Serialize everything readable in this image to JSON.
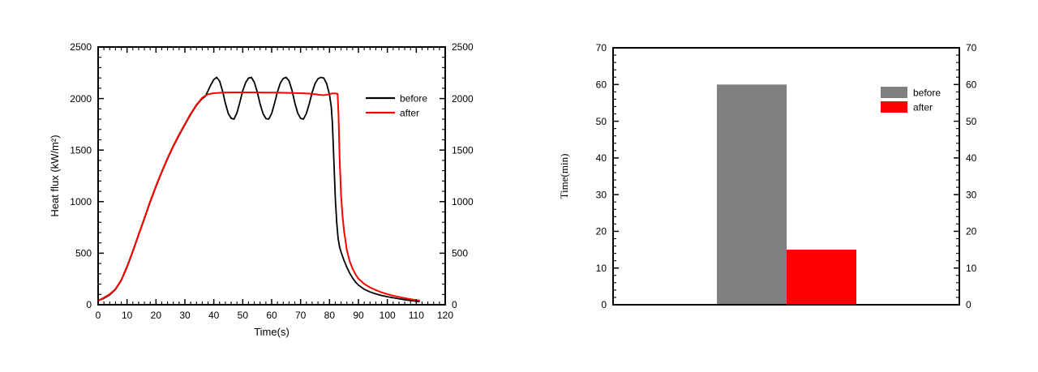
{
  "figure": {
    "background": "#ffffff",
    "axis_color": "#000000"
  },
  "chart_data": [
    {
      "id": "heat_flux",
      "type": "line",
      "title": "",
      "xlabel": "Time(s)",
      "ylabel": "Heat flux (kW/m²)",
      "xlim": [
        0,
        120
      ],
      "ylim": [
        0,
        2500
      ],
      "xticks": [
        0,
        10,
        20,
        30,
        40,
        50,
        60,
        70,
        80,
        90,
        100,
        110,
        120
      ],
      "yticks": [
        0,
        500,
        1000,
        1500,
        2000,
        2500
      ],
      "x_minor_step": 2,
      "y_minor_step": 100,
      "grid": false,
      "mirror_right_axis": true,
      "legend": {
        "position": "right-center",
        "entries": [
          {
            "label": "before",
            "color": "#000000",
            "swatch": "line"
          },
          {
            "label": "after",
            "color": "#ff0000",
            "swatch": "line"
          }
        ]
      },
      "series": [
        {
          "name": "before",
          "color": "#000000",
          "points": [
            [
              0,
              40
            ],
            [
              2,
              62
            ],
            [
              4,
              95
            ],
            [
              6,
              148
            ],
            [
              8,
              235
            ],
            [
              10,
              365
            ],
            [
              12,
              515
            ],
            [
              14,
              675
            ],
            [
              16,
              835
            ],
            [
              18,
              995
            ],
            [
              20,
              1145
            ],
            [
              22,
              1285
            ],
            [
              24,
              1415
            ],
            [
              26,
              1535
            ],
            [
              28,
              1645
            ],
            [
              30,
              1745
            ],
            [
              32,
              1845
            ],
            [
              34,
              1935
            ],
            [
              36,
              2000
            ],
            [
              37,
              2020
            ],
            [
              38,
              2075
            ],
            [
              39,
              2135
            ],
            [
              40,
              2185
            ],
            [
              41,
              2205
            ],
            [
              42,
              2170
            ],
            [
              43,
              2075
            ],
            [
              44,
              1955
            ],
            [
              45,
              1855
            ],
            [
              46,
              1808
            ],
            [
              47,
              1800
            ],
            [
              48,
              1862
            ],
            [
              49,
              1965
            ],
            [
              50,
              2075
            ],
            [
              51,
              2155
            ],
            [
              52,
              2198
            ],
            [
              53,
              2205
            ],
            [
              54,
              2158
            ],
            [
              55,
              2065
            ],
            [
              56,
              1948
            ],
            [
              57,
              1855
            ],
            [
              58,
              1806
            ],
            [
              59,
              1800
            ],
            [
              60,
              1855
            ],
            [
              61,
              1955
            ],
            [
              62,
              2065
            ],
            [
              63,
              2150
            ],
            [
              64,
              2195
            ],
            [
              65,
              2205
            ],
            [
              66,
              2172
            ],
            [
              67,
              2082
            ],
            [
              68,
              1960
            ],
            [
              69,
              1860
            ],
            [
              70,
              1808
            ],
            [
              71,
              1800
            ],
            [
              72,
              1855
            ],
            [
              73,
              1950
            ],
            [
              74,
              2060
            ],
            [
              75,
              2145
            ],
            [
              76,
              2192
            ],
            [
              77,
              2205
            ],
            [
              78,
              2200
            ],
            [
              79,
              2145
            ],
            [
              80,
              2040
            ],
            [
              80.6,
              1920
            ],
            [
              81,
              1760
            ],
            [
              81.5,
              1400
            ],
            [
              82,
              1030
            ],
            [
              82.5,
              790
            ],
            [
              83,
              640
            ],
            [
              83.5,
              560
            ],
            [
              84,
              510
            ],
            [
              85,
              430
            ],
            [
              86,
              365
            ],
            [
              87,
              305
            ],
            [
              88,
              258
            ],
            [
              89,
              220
            ],
            [
              90,
              190
            ],
            [
              92,
              150
            ],
            [
              94,
              124
            ],
            [
              96,
              105
            ],
            [
              98,
              90
            ],
            [
              100,
              78
            ],
            [
              102,
              68
            ],
            [
              104,
              58
            ],
            [
              106,
              49
            ],
            [
              108,
              41
            ],
            [
              110,
              34
            ],
            [
              111,
              31
            ]
          ]
        },
        {
          "name": "after",
          "color": "#ff0000",
          "points": [
            [
              0,
              40
            ],
            [
              2,
              68
            ],
            [
              4,
              102
            ],
            [
              6,
              152
            ],
            [
              8,
              240
            ],
            [
              10,
              372
            ],
            [
              12,
              522
            ],
            [
              14,
              682
            ],
            [
              16,
              842
            ],
            [
              18,
              1002
            ],
            [
              20,
              1152
            ],
            [
              22,
              1292
            ],
            [
              24,
              1422
            ],
            [
              26,
              1542
            ],
            [
              28,
              1652
            ],
            [
              30,
              1752
            ],
            [
              32,
              1852
            ],
            [
              34,
              1940
            ],
            [
              36,
              2008
            ],
            [
              38,
              2042
            ],
            [
              40,
              2052
            ],
            [
              43,
              2057
            ],
            [
              46,
              2060
            ],
            [
              50,
              2060
            ],
            [
              54,
              2060
            ],
            [
              58,
              2058
            ],
            [
              62,
              2058
            ],
            [
              66,
              2055
            ],
            [
              70,
              2052
            ],
            [
              73,
              2048
            ],
            [
              76,
              2038
            ],
            [
              78,
              2032
            ],
            [
              80,
              2042
            ],
            [
              81,
              2050
            ],
            [
              82,
              2050
            ],
            [
              82.8,
              2045
            ],
            [
              83.1,
              1850
            ],
            [
              83.5,
              1420
            ],
            [
              84,
              1060
            ],
            [
              84.5,
              860
            ],
            [
              85,
              720
            ],
            [
              86,
              530
            ],
            [
              87,
              420
            ],
            [
              88,
              348
            ],
            [
              89,
              295
            ],
            [
              90,
              252
            ],
            [
              92,
              202
            ],
            [
              94,
              168
            ],
            [
              96,
              142
            ],
            [
              98,
              120
            ],
            [
              100,
              102
            ],
            [
              102,
              88
            ],
            [
              104,
              76
            ],
            [
              106,
              64
            ],
            [
              108,
              54
            ],
            [
              110,
              44
            ],
            [
              111,
              42
            ]
          ]
        }
      ]
    },
    {
      "id": "burn_time",
      "type": "bar",
      "title": "",
      "xlabel": "",
      "ylabel": "Time(min)",
      "ylim": [
        0,
        70
      ],
      "yticks": [
        0,
        10,
        20,
        30,
        40,
        50,
        60,
        70
      ],
      "y_minor_step": 2,
      "grid": false,
      "mirror_right_axis": true,
      "categories": [
        "before",
        "after"
      ],
      "values": [
        60,
        15
      ],
      "bar_colors": [
        "#808080",
        "#ff0000"
      ],
      "legend": {
        "position": "right-top",
        "entries": [
          {
            "label": "before",
            "color": "#808080",
            "swatch": "fill"
          },
          {
            "label": "after",
            "color": "#ff0000",
            "swatch": "fill"
          }
        ]
      }
    }
  ]
}
